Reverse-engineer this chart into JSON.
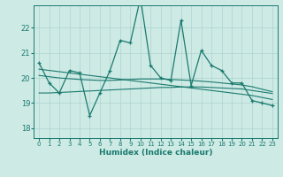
{
  "xlabel": "Humidex (Indice chaleur)",
  "x_ticks": [
    0,
    1,
    2,
    3,
    4,
    5,
    6,
    7,
    8,
    9,
    10,
    11,
    12,
    13,
    14,
    15,
    16,
    17,
    18,
    19,
    20,
    21,
    22,
    23
  ],
  "y_ticks": [
    18,
    19,
    20,
    21,
    22
  ],
  "ylim": [
    17.6,
    22.9
  ],
  "xlim": [
    -0.5,
    23.5
  ],
  "line_color": "#1a7a6e",
  "bg_color": "#cdeae5",
  "grid_color": "#aed4cf",
  "series": {
    "main": [
      20.6,
      19.8,
      19.4,
      20.3,
      20.2,
      18.5,
      19.4,
      20.3,
      21.5,
      21.4,
      23.2,
      20.5,
      20.0,
      19.9,
      22.3,
      19.7,
      21.1,
      20.5,
      20.3,
      19.8,
      19.8,
      19.1,
      19.0,
      18.9
    ],
    "smooth1": [
      19.4,
      19.4,
      19.42,
      19.44,
      19.46,
      19.48,
      19.5,
      19.52,
      19.54,
      19.56,
      19.58,
      19.6,
      19.62,
      19.62,
      19.64,
      19.64,
      19.64,
      19.62,
      19.6,
      19.58,
      19.56,
      19.5,
      19.44,
      19.38
    ],
    "smooth2": [
      20.1,
      20.05,
      20.0,
      19.97,
      19.94,
      19.92,
      19.9,
      19.9,
      19.92,
      19.94,
      19.96,
      19.96,
      19.96,
      19.94,
      19.92,
      19.9,
      19.87,
      19.84,
      19.8,
      19.76,
      19.72,
      19.65,
      19.55,
      19.45
    ],
    "trend": [
      20.35,
      20.3,
      20.25,
      20.2,
      20.15,
      20.1,
      20.05,
      20.0,
      19.95,
      19.9,
      19.85,
      19.8,
      19.75,
      19.7,
      19.65,
      19.6,
      19.55,
      19.5,
      19.45,
      19.4,
      19.35,
      19.3,
      19.22,
      19.14
    ]
  }
}
